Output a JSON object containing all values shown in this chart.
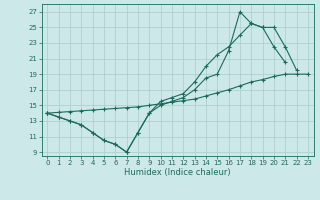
{
  "xlabel": "Humidex (Indice chaleur)",
  "ylabel_ticks": [
    9,
    11,
    13,
    15,
    17,
    19,
    21,
    23,
    25,
    27
  ],
  "xlabel_ticks": [
    0,
    1,
    2,
    3,
    4,
    5,
    6,
    7,
    8,
    9,
    10,
    11,
    12,
    13,
    14,
    15,
    16,
    17,
    18,
    19,
    20,
    21,
    22,
    23
  ],
  "xlim": [
    -0.5,
    23.5
  ],
  "ylim": [
    8.5,
    28.0
  ],
  "background_color": "#cde8e8",
  "grid_color": "#aacccc",
  "line_color": "#1a6b5e",
  "series": [
    {
      "x": [
        0,
        1,
        2,
        3,
        4,
        5,
        6,
        7,
        8,
        9,
        10,
        11,
        12,
        13,
        14,
        15,
        16,
        17,
        18,
        19,
        20,
        21
      ],
      "y": [
        14.0,
        13.5,
        13.0,
        12.5,
        11.5,
        10.5,
        10.0,
        9.0,
        11.5,
        14.0,
        15.0,
        15.5,
        16.0,
        17.0,
        18.5,
        19.0,
        22.0,
        27.0,
        25.5,
        25.0,
        22.5,
        20.5
      ]
    },
    {
      "x": [
        0,
        1,
        2,
        3,
        4,
        5,
        6,
        7,
        8,
        9,
        10,
        11,
        12,
        13,
        14,
        15,
        16,
        17,
        18,
        19,
        20,
        21,
        22
      ],
      "y": [
        14.0,
        13.5,
        13.0,
        12.5,
        11.5,
        10.5,
        10.0,
        9.0,
        11.5,
        14.0,
        15.5,
        16.0,
        16.5,
        18.0,
        20.0,
        21.5,
        22.5,
        24.0,
        25.5,
        25.0,
        25.0,
        22.5,
        19.5
      ]
    },
    {
      "x": [
        0,
        1,
        2,
        3,
        4,
        5,
        6,
        7,
        8,
        9,
        10,
        11,
        12,
        13,
        14,
        15,
        16,
        17,
        18,
        19,
        20,
        21,
        22,
        23
      ],
      "y": [
        14.0,
        14.1,
        14.2,
        14.3,
        14.4,
        14.5,
        14.6,
        14.7,
        14.8,
        15.0,
        15.2,
        15.4,
        15.6,
        15.8,
        16.2,
        16.6,
        17.0,
        17.5,
        18.0,
        18.3,
        18.7,
        19.0,
        19.0,
        19.0
      ]
    }
  ]
}
